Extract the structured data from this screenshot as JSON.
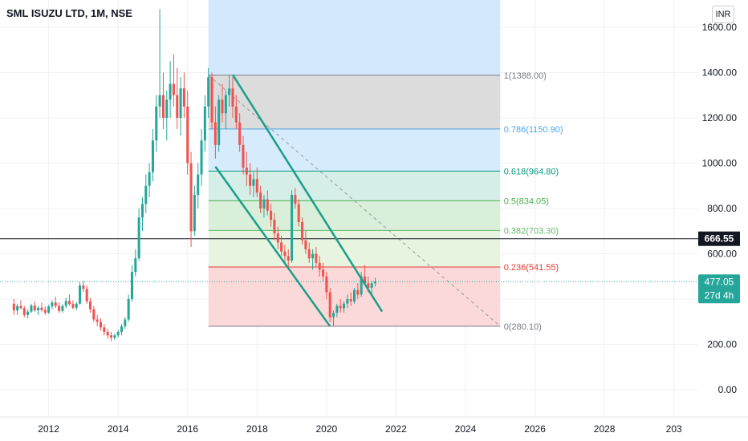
{
  "title": "SML ISUZU LTD, 1M, NSE",
  "currency_label": "INR",
  "colors": {
    "up": "#26a69a",
    "down": "#ef5350",
    "channel": "#1b9e8a",
    "horizontal_line": "#131722",
    "axis_text": "#131722",
    "grid": "#eef0f3"
  },
  "chart_data": {
    "type": "candlestick",
    "x_axis": {
      "ticks": [
        "2012",
        "2014",
        "2016",
        "2018",
        "2020",
        "2022",
        "2024",
        "2026",
        "2028",
        "203"
      ],
      "range": [
        2010.6,
        2030.7
      ]
    },
    "y_axis": {
      "ticks": [
        "0.00",
        "200.00",
        "400.00",
        "600.00",
        "800.00",
        "1000.00",
        "1200.00",
        "1400.00",
        "1600.00"
      ],
      "range": [
        -120,
        1720
      ]
    },
    "price_label": {
      "value": "477.05",
      "countdown": "27d 4h",
      "price": 477.05
    },
    "horizontal_line": {
      "value": "666.55",
      "price": 666.55
    },
    "fibonacci": {
      "from_date": 2016.6,
      "to_date": 2025.0,
      "levels": [
        {
          "label": "1(1388.00)",
          "price": 1388.0,
          "color": "#787b86",
          "fill": "#dcdcdc"
        },
        {
          "label": "0.786(1150.90)",
          "price": 1150.9,
          "color": "#4fa6e6",
          "fill": "#d6ebfb"
        },
        {
          "label": "0.618(964.80)",
          "price": 964.8,
          "color": "#089981",
          "fill": "#d5eee8"
        },
        {
          "label": "0.5(834.05)",
          "price": 834.05,
          "color": "#4caf50",
          "fill": "#d9efd9"
        },
        {
          "label": "0.382(703.30)",
          "price": 703.3,
          "color": "#66bb6a",
          "fill": "#e6f4e0"
        },
        {
          "label": "0.236(541.55)",
          "price": 541.55,
          "color": "#e53935",
          "fill": "#fcd9d9"
        },
        {
          "label": "0(280.10)",
          "price": 280.1,
          "color": "#787b86",
          "fill": ""
        }
      ],
      "top_zone": {
        "price_from": 1388.0,
        "price_to": 1720,
        "fill": "#d3e8fc"
      }
    },
    "channel": {
      "upper": [
        [
          2017.3,
          1390
        ],
        [
          2021.6,
          345
        ]
      ],
      "lower": [
        [
          2016.8,
          985
        ],
        [
          2020.1,
          280
        ]
      ]
    },
    "trend_line": [
      [
        2016.6,
        1388
      ],
      [
        2025.0,
        280
      ]
    ],
    "candles": [
      [
        2011.0,
        380,
        400,
        330,
        350
      ],
      [
        2011.1,
        350,
        380,
        330,
        370
      ],
      [
        2011.2,
        370,
        395,
        355,
        360
      ],
      [
        2011.3,
        360,
        370,
        320,
        330
      ],
      [
        2011.4,
        330,
        355,
        315,
        345
      ],
      [
        2011.5,
        345,
        380,
        340,
        372
      ],
      [
        2011.6,
        372,
        390,
        345,
        350
      ],
      [
        2011.7,
        350,
        370,
        330,
        362
      ],
      [
        2011.8,
        362,
        385,
        345,
        352
      ],
      [
        2011.9,
        352,
        368,
        330,
        340
      ],
      [
        2012.0,
        340,
        375,
        335,
        368
      ],
      [
        2012.1,
        368,
        395,
        355,
        385
      ],
      [
        2012.2,
        385,
        410,
        360,
        370
      ],
      [
        2012.3,
        370,
        385,
        340,
        348
      ],
      [
        2012.4,
        348,
        378,
        340,
        370
      ],
      [
        2012.5,
        370,
        405,
        360,
        392
      ],
      [
        2012.6,
        392,
        420,
        370,
        378
      ],
      [
        2012.7,
        378,
        395,
        355,
        362
      ],
      [
        2012.8,
        362,
        388,
        350,
        380
      ],
      [
        2012.9,
        380,
        475,
        375,
        460
      ],
      [
        2013.0,
        460,
        480,
        430,
        445
      ],
      [
        2013.1,
        445,
        460,
        380,
        390
      ],
      [
        2013.2,
        390,
        405,
        340,
        355
      ],
      [
        2013.3,
        355,
        370,
        300,
        310
      ],
      [
        2013.4,
        310,
        330,
        280,
        300
      ],
      [
        2013.5,
        300,
        315,
        260,
        275
      ],
      [
        2013.6,
        275,
        290,
        240,
        255
      ],
      [
        2013.7,
        255,
        270,
        225,
        240
      ],
      [
        2013.8,
        240,
        255,
        215,
        230
      ],
      [
        2013.9,
        230,
        248,
        220,
        240
      ],
      [
        2014.0,
        240,
        265,
        230,
        255
      ],
      [
        2014.1,
        255,
        290,
        240,
        280
      ],
      [
        2014.2,
        280,
        320,
        270,
        310
      ],
      [
        2014.3,
        310,
        420,
        300,
        400
      ],
      [
        2014.4,
        400,
        550,
        390,
        520
      ],
      [
        2014.5,
        520,
        620,
        500,
        580
      ],
      [
        2014.6,
        580,
        800,
        570,
        760
      ],
      [
        2014.7,
        760,
        850,
        700,
        820
      ],
      [
        2014.8,
        820,
        950,
        780,
        900
      ],
      [
        2014.9,
        900,
        1000,
        850,
        960
      ],
      [
        2015.0,
        960,
        1150,
        920,
        1100
      ],
      [
        2015.1,
        1100,
        1300,
        1050,
        1250
      ],
      [
        2015.2,
        1250,
        1680,
        1200,
        1300
      ],
      [
        2015.3,
        1300,
        1400,
        1150,
        1200
      ],
      [
        2015.4,
        1200,
        1320,
        1100,
        1280
      ],
      [
        2015.5,
        1280,
        1450,
        1200,
        1350
      ],
      [
        2015.6,
        1350,
        1480,
        1250,
        1300
      ],
      [
        2015.7,
        1300,
        1420,
        1150,
        1200
      ],
      [
        2015.8,
        1200,
        1380,
        1120,
        1330
      ],
      [
        2015.9,
        1330,
        1400,
        1200,
        1250
      ],
      [
        2016.0,
        1250,
        1320,
        950,
        1000
      ],
      [
        2016.1,
        1000,
        1050,
        630,
        700
      ],
      [
        2016.2,
        700,
        900,
        680,
        860
      ],
      [
        2016.3,
        860,
        1000,
        800,
        950
      ],
      [
        2016.4,
        950,
        1150,
        900,
        1100
      ],
      [
        2016.5,
        1100,
        1300,
        1050,
        1250
      ],
      [
        2016.6,
        1250,
        1420,
        1200,
        1380
      ],
      [
        2016.7,
        1380,
        1400,
        1150,
        1180
      ],
      [
        2016.8,
        1180,
        1250,
        1020,
        1080
      ],
      [
        2016.9,
        1080,
        1300,
        1050,
        1280
      ],
      [
        2017.0,
        1280,
        1350,
        1180,
        1220
      ],
      [
        2017.1,
        1220,
        1320,
        1150,
        1300
      ],
      [
        2017.2,
        1300,
        1390,
        1250,
        1330
      ],
      [
        2017.3,
        1330,
        1380,
        1200,
        1250
      ],
      [
        2017.4,
        1250,
        1300,
        1150,
        1180
      ],
      [
        2017.5,
        1180,
        1220,
        1050,
        1080
      ],
      [
        2017.6,
        1080,
        1120,
        950,
        980
      ],
      [
        2017.7,
        980,
        1050,
        900,
        950
      ],
      [
        2017.8,
        950,
        1000,
        860,
        900
      ],
      [
        2017.9,
        900,
        960,
        850,
        930
      ],
      [
        2018.0,
        930,
        980,
        850,
        870
      ],
      [
        2018.1,
        870,
        900,
        780,
        800
      ],
      [
        2018.2,
        800,
        860,
        760,
        840
      ],
      [
        2018.3,
        840,
        880,
        770,
        790
      ],
      [
        2018.4,
        790,
        820,
        720,
        750
      ],
      [
        2018.5,
        750,
        780,
        660,
        690
      ],
      [
        2018.6,
        690,
        720,
        620,
        650
      ],
      [
        2018.7,
        650,
        680,
        590,
        610
      ],
      [
        2018.8,
        610,
        640,
        560,
        590
      ],
      [
        2018.9,
        590,
        620,
        540,
        570
      ],
      [
        2019.0,
        570,
        880,
        560,
        860
      ],
      [
        2019.1,
        860,
        890,
        800,
        820
      ],
      [
        2019.2,
        820,
        840,
        720,
        740
      ],
      [
        2019.3,
        740,
        760,
        640,
        660
      ],
      [
        2019.4,
        660,
        700,
        600,
        620
      ],
      [
        2019.5,
        620,
        650,
        560,
        580
      ],
      [
        2019.6,
        580,
        620,
        530,
        600
      ],
      [
        2019.7,
        600,
        630,
        540,
        560
      ],
      [
        2019.8,
        560,
        590,
        500,
        530
      ],
      [
        2019.9,
        530,
        560,
        480,
        500
      ],
      [
        2020.0,
        500,
        520,
        400,
        430
      ],
      [
        2020.1,
        430,
        450,
        300,
        320
      ],
      [
        2020.2,
        320,
        350,
        280,
        340
      ],
      [
        2020.3,
        340,
        380,
        320,
        370
      ],
      [
        2020.4,
        370,
        400,
        340,
        360
      ],
      [
        2020.5,
        360,
        390,
        340,
        380
      ],
      [
        2020.6,
        380,
        420,
        360,
        400
      ],
      [
        2020.7,
        400,
        430,
        370,
        390
      ],
      [
        2020.8,
        390,
        450,
        380,
        440
      ],
      [
        2020.9,
        440,
        470,
        400,
        420
      ],
      [
        2021.0,
        420,
        520,
        410,
        500
      ],
      [
        2021.1,
        500,
        550,
        460,
        470
      ],
      [
        2021.2,
        470,
        500,
        430,
        450
      ],
      [
        2021.3,
        450,
        480,
        420,
        470
      ],
      [
        2021.4,
        470,
        495,
        455,
        477
      ]
    ]
  }
}
